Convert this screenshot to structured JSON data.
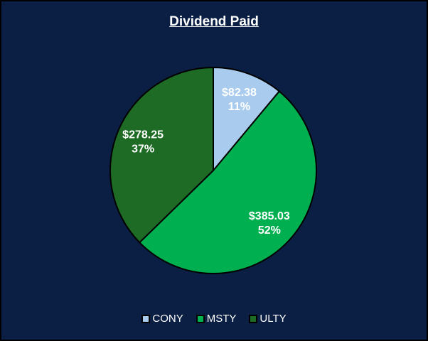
{
  "chart_data": {
    "type": "pie",
    "title": "Dividend Paid",
    "categories": [
      "CONY",
      "MSTY",
      "ULTY"
    ],
    "values": [
      82.38,
      385.03,
      278.25
    ],
    "value_labels": [
      "$82.38",
      "$385.03",
      "$278.25"
    ],
    "percent_labels": [
      "11%",
      "52%",
      "37%"
    ],
    "colors": [
      "#a9ccee",
      "#00b050",
      "#1e6b25"
    ],
    "legend_position": "bottom",
    "background": "#0b1f44"
  }
}
